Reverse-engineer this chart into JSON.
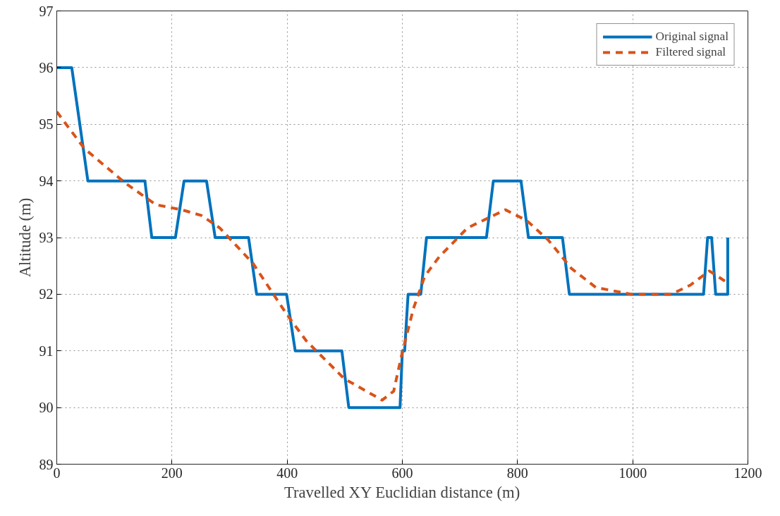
{
  "chart_data": {
    "type": "line",
    "xlabel": "Travelled XY Euclidian distance (m)",
    "ylabel": "Altitude (m)",
    "xlim": [
      0,
      1200
    ],
    "ylim": [
      89,
      97
    ],
    "xticks": [
      0,
      200,
      400,
      600,
      800,
      1000,
      1200
    ],
    "yticks": [
      89,
      90,
      91,
      92,
      93,
      94,
      95,
      96,
      97
    ],
    "grid": true,
    "legend": "top right",
    "series": [
      {
        "name": "Original signal",
        "color": "#0072bd",
        "line_style": "solid",
        "x": [
          0,
          26,
          54,
          153,
          165,
          206,
          221,
          260,
          275,
          333,
          347,
          399,
          414,
          495,
          507,
          596,
          600,
          604,
          610,
          632,
          642,
          746,
          758,
          806,
          819,
          878,
          890,
          1123,
          1130,
          1137,
          1144,
          1165,
          1165
        ],
        "values": [
          96,
          96,
          94,
          94,
          93,
          93,
          94,
          94,
          93,
          93,
          92,
          92,
          91,
          91,
          90,
          90,
          91,
          91,
          92,
          92,
          93,
          93,
          94,
          94,
          93,
          93,
          92,
          92,
          93,
          93,
          92,
          92,
          93
        ]
      },
      {
        "name": "Filtered signal",
        "color": "#d95319",
        "line_style": "dashed",
        "x": [
          0,
          48,
          118,
          172,
          217,
          251,
          283,
          341,
          399,
          433,
          499,
          565,
          585,
          598,
          619,
          639,
          664,
          693,
          713,
          779,
          816,
          853,
          894,
          936,
          997,
          1067,
          1100,
          1133,
          1165
        ],
        "values": [
          95.22,
          94.57,
          93.97,
          93.58,
          93.49,
          93.39,
          93.17,
          92.54,
          91.65,
          91.18,
          90.51,
          90.13,
          90.29,
          90.89,
          91.74,
          92.32,
          92.66,
          92.96,
          93.17,
          93.49,
          93.3,
          92.96,
          92.45,
          92.12,
          92.0,
          92.0,
          92.16,
          92.41,
          92.2
        ]
      }
    ]
  }
}
